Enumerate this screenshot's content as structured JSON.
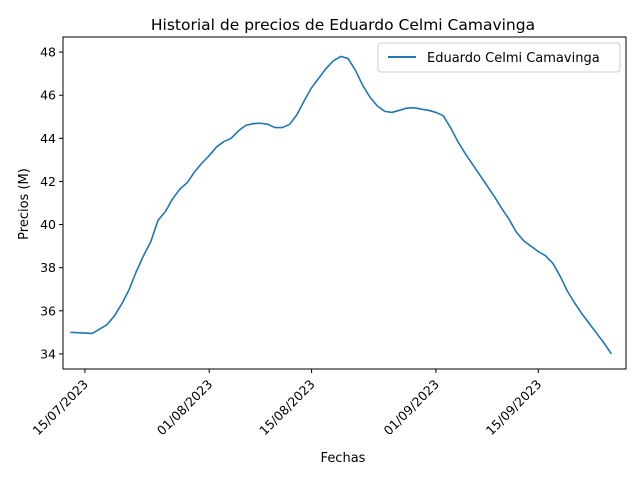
{
  "chart_data": {
    "type": "line",
    "title": "Historial de precios de Eduardo Celmi Camavinga",
    "xlabel": "Fechas",
    "ylabel": "Precios (M)",
    "x_ticks": [
      "15/07/2023",
      "01/08/2023",
      "15/08/2023",
      "01/09/2023",
      "15/09/2023"
    ],
    "y_ticks": [
      34,
      36,
      38,
      40,
      42,
      44,
      46,
      48
    ],
    "ylim": [
      33.3,
      48.7
    ],
    "xlim": [
      "2023-07-12",
      "2023-09-27"
    ],
    "grid": false,
    "legend_position": "top-right",
    "colors": {
      "series": "#1f77b4"
    },
    "series": [
      {
        "name": "Eduardo Celmi Camavinga",
        "points": [
          [
            "2023-07-13",
            35.0
          ],
          [
            "2023-07-16",
            34.95
          ],
          [
            "2023-07-18",
            35.35
          ],
          [
            "2023-07-19",
            35.75
          ],
          [
            "2023-07-20",
            36.3
          ],
          [
            "2023-07-21",
            36.95
          ],
          [
            "2023-07-22",
            37.8
          ],
          [
            "2023-07-23",
            38.55
          ],
          [
            "2023-07-24",
            39.2
          ],
          [
            "2023-07-25",
            40.2
          ],
          [
            "2023-07-26",
            40.6
          ],
          [
            "2023-07-27",
            41.2
          ],
          [
            "2023-07-28",
            41.65
          ],
          [
            "2023-07-29",
            41.95
          ],
          [
            "2023-07-30",
            42.45
          ],
          [
            "2023-07-31",
            42.85
          ],
          [
            "2023-08-01",
            43.2
          ],
          [
            "2023-08-02",
            43.6
          ],
          [
            "2023-08-03",
            43.85
          ],
          [
            "2023-08-04",
            44.0
          ],
          [
            "2023-08-05",
            44.35
          ],
          [
            "2023-08-06",
            44.6
          ],
          [
            "2023-08-07",
            44.68
          ],
          [
            "2023-08-08",
            44.7
          ],
          [
            "2023-08-09",
            44.65
          ],
          [
            "2023-08-10",
            44.5
          ],
          [
            "2023-08-11",
            44.5
          ],
          [
            "2023-08-12",
            44.65
          ],
          [
            "2023-08-13",
            45.1
          ],
          [
            "2023-08-14",
            45.75
          ],
          [
            "2023-08-15",
            46.35
          ],
          [
            "2023-08-16",
            46.8
          ],
          [
            "2023-08-17",
            47.25
          ],
          [
            "2023-08-18",
            47.6
          ],
          [
            "2023-08-19",
            47.8
          ],
          [
            "2023-08-20",
            47.7
          ],
          [
            "2023-08-21",
            47.15
          ],
          [
            "2023-08-22",
            46.45
          ],
          [
            "2023-08-23",
            45.9
          ],
          [
            "2023-08-24",
            45.5
          ],
          [
            "2023-08-25",
            45.25
          ],
          [
            "2023-08-26",
            45.2
          ],
          [
            "2023-08-27",
            45.3
          ],
          [
            "2023-08-28",
            45.4
          ],
          [
            "2023-08-29",
            45.42
          ],
          [
            "2023-08-30",
            45.35
          ],
          [
            "2023-08-31",
            45.3
          ],
          [
            "2023-09-01",
            45.2
          ],
          [
            "2023-09-02",
            45.05
          ],
          [
            "2023-09-03",
            44.5
          ],
          [
            "2023-09-04",
            43.85
          ],
          [
            "2023-09-05",
            43.3
          ],
          [
            "2023-09-06",
            42.8
          ],
          [
            "2023-09-07",
            42.3
          ],
          [
            "2023-09-08",
            41.8
          ],
          [
            "2023-09-09",
            41.3
          ],
          [
            "2023-09-10",
            40.75
          ],
          [
            "2023-09-11",
            40.25
          ],
          [
            "2023-09-12",
            39.65
          ],
          [
            "2023-09-13",
            39.25
          ],
          [
            "2023-09-14",
            39.0
          ],
          [
            "2023-09-15",
            38.75
          ],
          [
            "2023-09-16",
            38.55
          ],
          [
            "2023-09-17",
            38.2
          ],
          [
            "2023-09-18",
            37.6
          ],
          [
            "2023-09-19",
            36.9
          ],
          [
            "2023-09-20",
            36.35
          ],
          [
            "2023-09-21",
            35.85
          ],
          [
            "2023-09-22",
            35.4
          ],
          [
            "2023-09-23",
            34.95
          ],
          [
            "2023-09-24",
            34.5
          ],
          [
            "2023-09-25",
            34.0
          ]
        ]
      }
    ]
  }
}
